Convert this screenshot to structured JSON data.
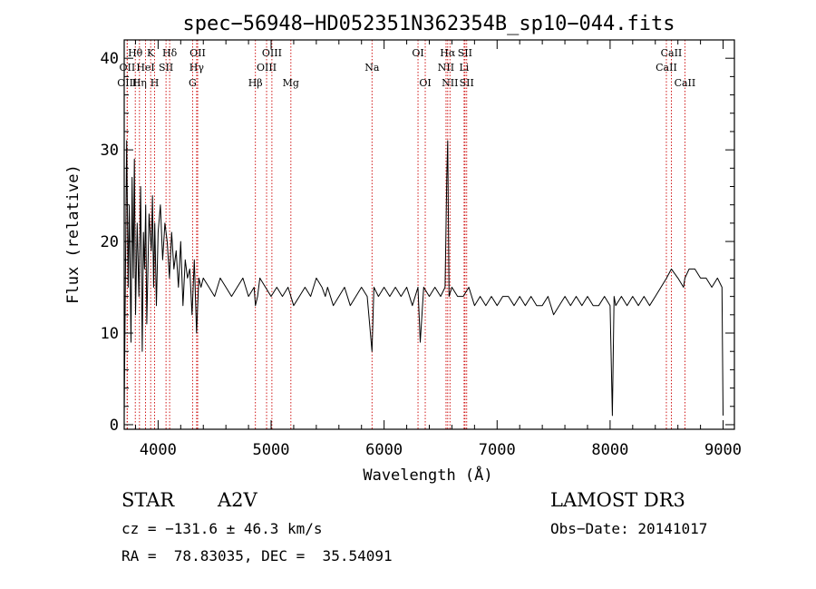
{
  "chart_data": {
    "type": "line",
    "title": "spec−56948−HD052351N362354B_sp10−044.fits",
    "xlabel": "Wavelength (Å)",
    "ylabel": "Flux (relative)",
    "xlim": [
      3700,
      9100
    ],
    "ylim": [
      -0.5,
      42
    ],
    "x_ticks": [
      4000,
      5000,
      6000,
      7000,
      8000,
      9000
    ],
    "x_tick_labels": [
      "4000",
      "5000",
      "6000",
      "7000",
      "8000",
      "9000"
    ],
    "y_ticks": [
      0,
      10,
      20,
      30,
      40
    ],
    "y_tick_labels": [
      "0",
      "10",
      "20",
      "30",
      "40"
    ],
    "grid": false,
    "line_color": "#000000",
    "marker_color": "#cc0000",
    "series": [
      {
        "x": [
          3700,
          3712,
          3722,
          3735,
          3745,
          3760,
          3770,
          3780,
          3790,
          3800,
          3815,
          3830,
          3845,
          3860,
          3870,
          3880,
          3890,
          3900,
          3920,
          3940,
          3950,
          3960,
          3970,
          3985,
          4000,
          4020,
          4040,
          4060,
          4080,
          4100,
          4120,
          4140,
          4160,
          4180,
          4200,
          4220,
          4240,
          4260,
          4280,
          4300,
          4320,
          4340,
          4360,
          4380,
          4400,
          4450,
          4500,
          4550,
          4600,
          4650,
          4700,
          4750,
          4800,
          4850,
          4861,
          4880,
          4900,
          4950,
          5000,
          5050,
          5100,
          5150,
          5200,
          5250,
          5300,
          5350,
          5400,
          5450,
          5480,
          5500,
          5550,
          5600,
          5650,
          5700,
          5750,
          5800,
          5850,
          5893,
          5910,
          5950,
          6000,
          6050,
          6100,
          6150,
          6200,
          6250,
          6300,
          6320,
          6350,
          6400,
          6450,
          6500,
          6540,
          6555,
          6563,
          6575,
          6600,
          6650,
          6700,
          6750,
          6800,
          6850,
          6900,
          6950,
          7000,
          7050,
          7100,
          7150,
          7200,
          7250,
          7300,
          7350,
          7400,
          7450,
          7500,
          7550,
          7600,
          7650,
          7700,
          7750,
          7800,
          7850,
          7900,
          7950,
          8000,
          8020,
          8035,
          8050,
          8100,
          8150,
          8200,
          8250,
          8300,
          8350,
          8400,
          8450,
          8500,
          8542,
          8600,
          8650,
          8662,
          8700,
          8750,
          8800,
          8850,
          8900,
          8950,
          8990,
          9000
        ],
        "y": [
          1,
          18,
          31,
          15,
          24,
          9,
          27,
          16,
          29,
          12,
          22,
          14,
          26,
          8,
          21,
          17,
          24,
          11,
          23,
          19,
          25,
          15,
          22,
          13,
          21,
          24,
          18,
          22,
          20,
          16,
          21,
          17,
          19,
          15,
          20,
          13,
          18,
          16,
          17,
          12,
          18,
          10,
          16,
          15,
          16,
          15,
          14,
          16,
          15,
          14,
          15,
          16,
          14,
          15,
          13,
          14,
          16,
          15,
          14,
          15,
          14,
          15,
          13,
          14,
          15,
          14,
          16,
          15,
          14,
          15,
          13,
          14,
          15,
          13,
          14,
          15,
          14,
          8,
          15,
          14,
          15,
          14,
          15,
          14,
          15,
          13,
          15,
          9,
          15,
          14,
          15,
          14,
          15,
          27,
          31,
          14,
          15,
          14,
          14,
          15,
          13,
          14,
          13,
          14,
          13,
          14,
          14,
          13,
          14,
          13,
          14,
          13,
          13,
          14,
          12,
          13,
          14,
          13,
          14,
          13,
          14,
          13,
          13,
          14,
          13,
          1,
          14,
          13,
          14,
          13,
          14,
          13,
          14,
          13,
          14,
          15,
          16,
          17,
          16,
          15,
          16,
          17,
          17,
          16,
          16,
          15,
          16,
          15,
          1
        ]
      }
    ],
    "line_markers": [
      {
        "label": "OII",
        "x": 3727,
        "row": 1
      },
      {
        "label": "Hθ",
        "x": 3798,
        "row": 0
      },
      {
        "label": "OIII",
        "x": 3726,
        "row": 2
      },
      {
        "label": "Hη",
        "x": 3835,
        "row": 2
      },
      {
        "label": "K",
        "x": 3934,
        "row": 0
      },
      {
        "label": "HeI",
        "x": 3889,
        "row": 1
      },
      {
        "label": "H",
        "x": 3969,
        "row": 2
      },
      {
        "label": "SII",
        "x": 4070,
        "row": 1
      },
      {
        "label": "Hδ",
        "x": 4102,
        "row": 0
      },
      {
        "label": "G",
        "x": 4305,
        "row": 2
      },
      {
        "label": "OII",
        "x": 4350,
        "row": 0
      },
      {
        "label": "Hγ",
        "x": 4341,
        "row": 1
      },
      {
        "label": "Hβ",
        "x": 4861,
        "row": 2
      },
      {
        "label": "OIII",
        "x": 5007,
        "row": 0
      },
      {
        "label": "OIII",
        "x": 4960,
        "row": 1
      },
      {
        "label": "Mg",
        "x": 5175,
        "row": 2
      },
      {
        "label": "Na",
        "x": 5893,
        "row": 1
      },
      {
        "label": "OI",
        "x": 6300,
        "row": 0
      },
      {
        "label": "OI",
        "x": 6364,
        "row": 2
      },
      {
        "label": "Hα",
        "x": 6563,
        "row": 0
      },
      {
        "label": "NII",
        "x": 6548,
        "row": 1
      },
      {
        "label": "NII",
        "x": 6583,
        "row": 2
      },
      {
        "label": "SII",
        "x": 6716,
        "row": 0
      },
      {
        "label": "Li",
        "x": 6708,
        "row": 1
      },
      {
        "label": "SII",
        "x": 6731,
        "row": 2
      },
      {
        "label": "CaII",
        "x": 8542,
        "row": 0
      },
      {
        "label": "CaII",
        "x": 8498,
        "row": 1
      },
      {
        "label": "CaII",
        "x": 8662,
        "row": 2
      }
    ]
  },
  "info": {
    "object_type": "STAR",
    "spectral_class": "A2V",
    "cz": "cz = −131.6 ± 46.3 km/s",
    "ra_dec": "RA =  78.83035, DEC =  35.54091",
    "survey": "LAMOST DR3",
    "obs_date": "Obs−Date: 20141017"
  }
}
